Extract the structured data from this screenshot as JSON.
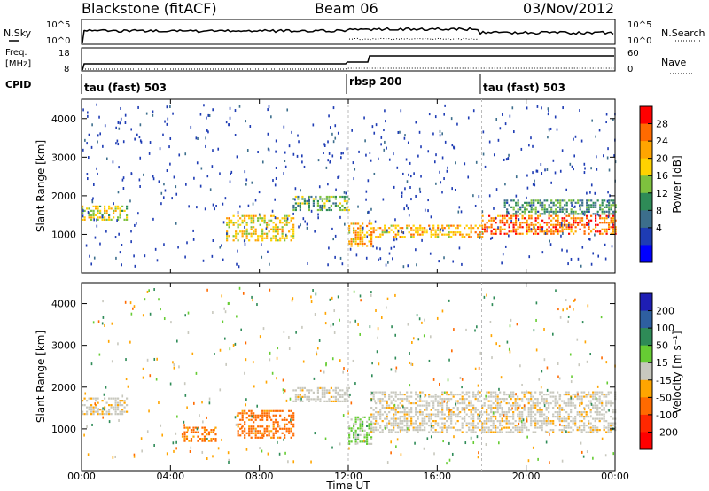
{
  "header": {
    "title": "Blackstone (fitACF)",
    "beam": "Beam 06",
    "date": "03/Nov/2012"
  },
  "panels": {
    "nsky_label": "N.Sky",
    "nsky_ticks": [
      "10^5",
      "10^0"
    ],
    "nsearch_label": "N.Search",
    "nsearch_ticks": [
      "10^5",
      "10^0"
    ],
    "freq_label": "Freq.",
    "freq_unit": "[MHz]",
    "freq_ticks": [
      "18",
      "8"
    ],
    "nave_label": "Nave",
    "nave_ticks": [
      "60",
      "0"
    ],
    "cpid_label": "CPID",
    "cpid_segments": [
      "tau (fast) 503",
      "rbsp 200",
      "tau (fast) 503"
    ]
  },
  "colorbars": {
    "power": {
      "label": "Power [dB]",
      "ticks": [
        "28",
        "24",
        "20",
        "16",
        "12",
        "8",
        "4"
      ],
      "colors": [
        "#ff0000",
        "#ff6a00",
        "#ffa500",
        "#ffd200",
        "#7ec13e",
        "#2e8b57",
        "#3c6e8c",
        "#1e3cb4",
        "#0000ff"
      ]
    },
    "velocity": {
      "label": "Velocity [m s⁻¹]",
      "ticks": [
        "200",
        "100",
        "50",
        "15",
        "-15",
        "-50",
        "-100",
        "-200"
      ],
      "colors": [
        "#1e1eb4",
        "#2e5fa0",
        "#2e8b57",
        "#66cc33",
        "#c8c8be",
        "#ffa500",
        "#ff6a00",
        "#ff2800",
        "#ff0000"
      ]
    }
  },
  "chart_data": {
    "type": "heatmap",
    "xlabel": "Time UT",
    "ylabel": "Slant Range [km]",
    "x_ticks": [
      "00:00",
      "04:00",
      "08:00",
      "12:00",
      "16:00",
      "20:00",
      "00:00"
    ],
    "y_ticks": [
      "4000",
      "3000",
      "2000",
      "1000"
    ],
    "xlim_hours": [
      0,
      24
    ],
    "ylim_km": [
      0,
      4500
    ],
    "mode_changes_hours": [
      12,
      18
    ],
    "power_bands": [
      {
        "t": [
          0,
          2
        ],
        "range_km": [
          1350,
          1750
        ],
        "level_db": 18
      },
      {
        "t": [
          6.5,
          9.5
        ],
        "range_km": [
          850,
          1500
        ],
        "level_db": 20
      },
      {
        "t": [
          9.5,
          12
        ],
        "range_km": [
          1650,
          2000
        ],
        "level_db": 14
      },
      {
        "t": [
          12,
          13
        ],
        "range_km": [
          700,
          1300
        ],
        "level_db": 22
      },
      {
        "t": [
          13,
          18
        ],
        "range_km": [
          950,
          1250
        ],
        "level_db": 22
      },
      {
        "t": [
          18,
          24
        ],
        "range_km": [
          1000,
          1500
        ],
        "level_db": 26
      },
      {
        "t": [
          19,
          24
        ],
        "range_km": [
          1500,
          1900
        ],
        "level_db": 12
      }
    ],
    "velocity_bands": [
      {
        "t": [
          0,
          2
        ],
        "range_km": [
          1350,
          1750
        ],
        "v": -5
      },
      {
        "t": [
          4.5,
          6
        ],
        "range_km": [
          700,
          1050
        ],
        "v": -60
      },
      {
        "t": [
          7,
          9.5
        ],
        "range_km": [
          800,
          1450
        ],
        "v": -60
      },
      {
        "t": [
          9.5,
          12
        ],
        "range_km": [
          1650,
          2000
        ],
        "v": -5
      },
      {
        "t": [
          12,
          13
        ],
        "range_km": [
          650,
          1300
        ],
        "v": 20
      },
      {
        "t": [
          13,
          24
        ],
        "range_km": [
          900,
          1900
        ],
        "v": -5
      }
    ]
  }
}
